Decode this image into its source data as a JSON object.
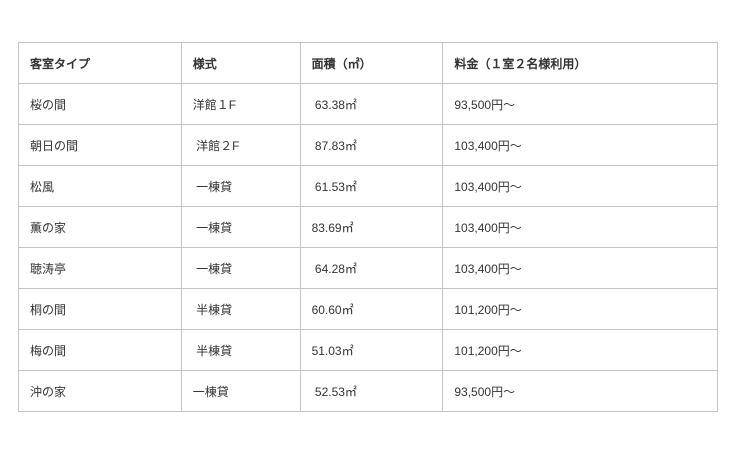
{
  "table": {
    "headers": [
      "客室タイプ",
      "様式",
      "面積（㎡）",
      "料金（１室２名様利用）"
    ],
    "rows": [
      [
        "桜の間",
        "洋館１F",
        " 63.38㎡",
        "93,500円～"
      ],
      [
        "朝日の間",
        " 洋館２F",
        " 87.83㎡",
        "103,400円～"
      ],
      [
        "松風",
        " 一棟貸",
        " 61.53㎡",
        "103,400円～"
      ],
      [
        "薫の家",
        " 一棟貸",
        "83.69㎡",
        "103,400円～"
      ],
      [
        "聴涛亭",
        " 一棟貸",
        " 64.28㎡",
        "103,400円～"
      ],
      [
        "桐の間",
        " 半棟貸",
        "60.60㎡",
        "101,200円～"
      ],
      [
        "梅の間",
        " 半棟貸",
        "51.03㎡",
        "101,200円～"
      ],
      [
        "沖の家",
        "一棟貸",
        " 52.53㎡",
        "93,500円～"
      ]
    ]
  }
}
